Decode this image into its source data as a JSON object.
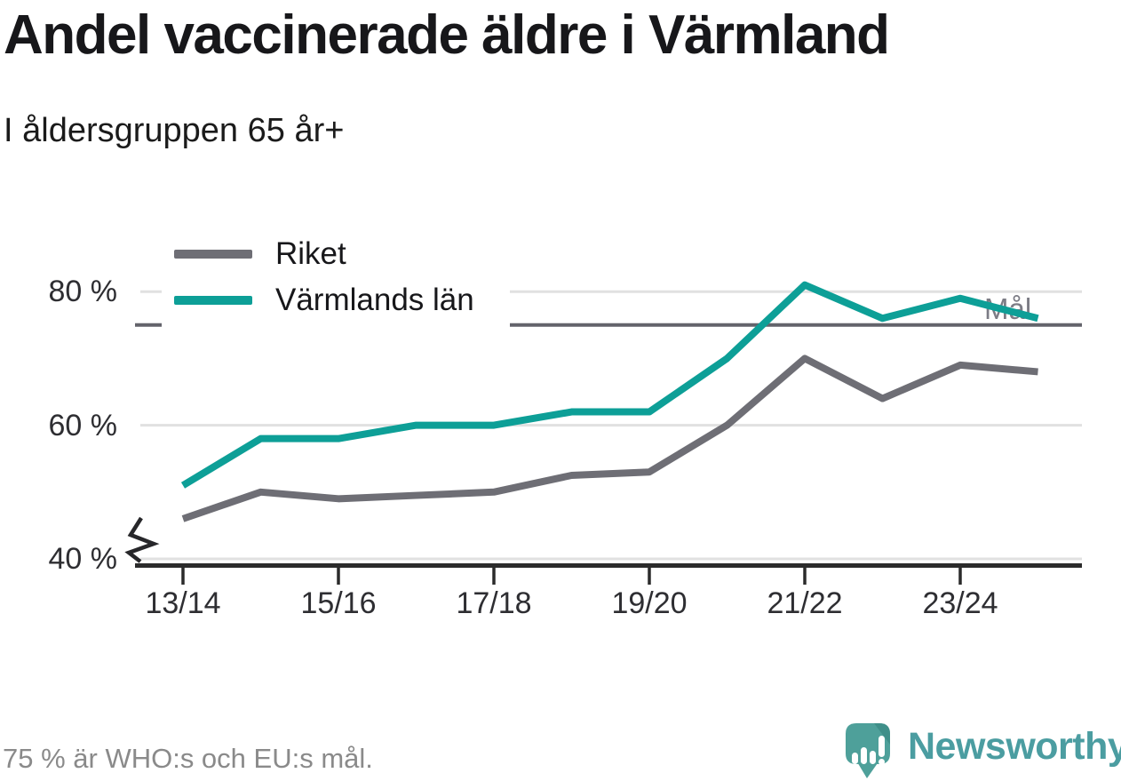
{
  "title": "Andel vaccinerade äldre i Värmland",
  "subtitle": "I åldersgruppen 65 år+",
  "footer": {
    "note": "75 % är WHO:s och EU:s mål."
  },
  "logo": {
    "brand": "Newsworthy"
  },
  "colors": {
    "accent_teal": "#0d9f97",
    "riket_gray": "#6e6e75",
    "target_line": "#63636b",
    "grid": "#e1e1e1",
    "axis": "#2b2b2b",
    "logo_teal": "#4b9da1",
    "logo_bubble": "#4ea09a",
    "logo_bubble_shade": "#3f8f89",
    "text_dark": "#17171a",
    "muted_text": "#8a8a8a"
  },
  "chart_data": {
    "type": "line",
    "x": [
      "13/14",
      "14/15",
      "15/16",
      "16/17",
      "17/18",
      "18/19",
      "19/20",
      "20/21",
      "21/22",
      "22/23",
      "23/24",
      "24/25"
    ],
    "x_tick_labels": [
      "13/14",
      "15/16",
      "17/18",
      "19/20",
      "21/22",
      "23/24"
    ],
    "series": [
      {
        "name": "Riket",
        "color": "#6e6e75",
        "values": [
          46,
          50,
          49,
          49.5,
          50,
          52.5,
          53,
          60,
          70,
          64,
          69,
          68
        ]
      },
      {
        "name": "Värmlands län",
        "color": "#0d9f97",
        "values": [
          51,
          58,
          58,
          60,
          60,
          62,
          62,
          70,
          81,
          76,
          79,
          76
        ]
      }
    ],
    "ylim": [
      40,
      84
    ],
    "yticks": [
      40,
      60,
      80
    ],
    "ytick_labels": [
      "40 %",
      "60 %",
      "80 %"
    ],
    "unit": "%",
    "reference_line": {
      "label": "Mål",
      "value": 75
    },
    "axis_break_at_bottom": true,
    "grid": "horizontal",
    "legend_position": "top-left"
  }
}
